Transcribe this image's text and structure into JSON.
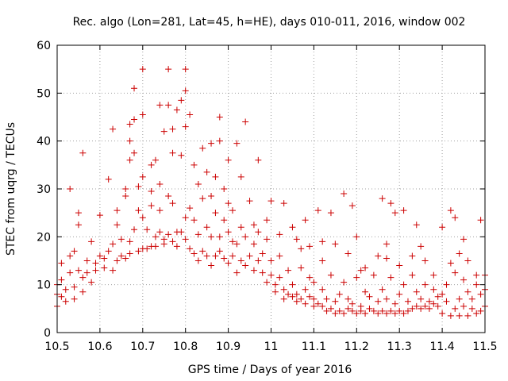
{
  "chart_data": {
    "type": "scatter",
    "title": "Rec. algo (Lon=281, Lat=45, h=HE), days 010-011, 2016, window 002",
    "xlabel": "GPS time / Days of year 2016",
    "ylabel": "STEC from uqrg / TECUs",
    "xlim": [
      10.5,
      11.5
    ],
    "ylim": [
      0,
      60
    ],
    "x_ticks": [
      10.5,
      10.6,
      10.7,
      10.8,
      10.9,
      11.0,
      11.1,
      11.2,
      11.3,
      11.4,
      11.5
    ],
    "x_tick_labels": [
      "10.5",
      "10.6",
      "10.7",
      "10.8",
      "10.9",
      "11",
      "11.1",
      "11.2",
      "11.3",
      "11.4",
      "11.5"
    ],
    "y_ticks": [
      0,
      10,
      20,
      30,
      40,
      50,
      60
    ],
    "y_tick_labels": [
      "0",
      "10",
      "20",
      "30",
      "40",
      "50",
      "60"
    ],
    "grid": true,
    "marker": "plus",
    "color": "#cc0000",
    "series": [
      {
        "points": [
          [
            10.5,
            5.5
          ],
          [
            10.5,
            8.0
          ],
          [
            10.5,
            10.0
          ],
          [
            10.51,
            7.5
          ],
          [
            10.51,
            11.0
          ],
          [
            10.51,
            14.5
          ],
          [
            10.52,
            9.0
          ],
          [
            10.52,
            6.5
          ],
          [
            10.53,
            12.5
          ],
          [
            10.53,
            16.0
          ],
          [
            10.53,
            30.0
          ],
          [
            10.54,
            7.0
          ],
          [
            10.54,
            17.0
          ],
          [
            10.54,
            9.5
          ],
          [
            10.55,
            13.0
          ],
          [
            10.55,
            25.0
          ],
          [
            10.55,
            22.5
          ],
          [
            10.56,
            11.5
          ],
          [
            10.56,
            8.5
          ],
          [
            10.56,
            37.5
          ],
          [
            10.57,
            12.5
          ],
          [
            10.57,
            15.0
          ],
          [
            10.58,
            19.0
          ],
          [
            10.58,
            10.5
          ],
          [
            10.59,
            13.0
          ],
          [
            10.59,
            14.5
          ],
          [
            10.6,
            16.0
          ],
          [
            10.6,
            24.5
          ],
          [
            10.61,
            13.5
          ],
          [
            10.61,
            15.5
          ],
          [
            10.62,
            32.0
          ],
          [
            10.62,
            17.0
          ],
          [
            10.63,
            13.0
          ],
          [
            10.63,
            18.5
          ],
          [
            10.63,
            42.5
          ],
          [
            10.64,
            15.0
          ],
          [
            10.64,
            22.5
          ],
          [
            10.64,
            25.5
          ],
          [
            10.65,
            16.0
          ],
          [
            10.65,
            19.5
          ],
          [
            10.66,
            28.5
          ],
          [
            10.66,
            30.0
          ],
          [
            10.66,
            15.5
          ],
          [
            10.67,
            36.0
          ],
          [
            10.67,
            40.0
          ],
          [
            10.67,
            43.5
          ],
          [
            10.67,
            19.0
          ],
          [
            10.67,
            16.5
          ],
          [
            10.68,
            21.5
          ],
          [
            10.68,
            37.5
          ],
          [
            10.68,
            44.5
          ],
          [
            10.68,
            51.0
          ],
          [
            10.69,
            17.0
          ],
          [
            10.69,
            25.5
          ],
          [
            10.69,
            30.5
          ],
          [
            10.7,
            17.5
          ],
          [
            10.7,
            24.0
          ],
          [
            10.7,
            32.5
          ],
          [
            10.7,
            55.0
          ],
          [
            10.7,
            45.5
          ],
          [
            10.71,
            17.5
          ],
          [
            10.71,
            21.5
          ],
          [
            10.72,
            18.0
          ],
          [
            10.72,
            26.5
          ],
          [
            10.72,
            29.5
          ],
          [
            10.72,
            35.0
          ],
          [
            10.73,
            20.0
          ],
          [
            10.73,
            18.0
          ],
          [
            10.73,
            36.0
          ],
          [
            10.74,
            21.0
          ],
          [
            10.74,
            25.5
          ],
          [
            10.74,
            31.0
          ],
          [
            10.74,
            47.5
          ],
          [
            10.75,
            18.5
          ],
          [
            10.75,
            19.5
          ],
          [
            10.75,
            42.0
          ],
          [
            10.76,
            55.0
          ],
          [
            10.76,
            28.5
          ],
          [
            10.76,
            20.5
          ],
          [
            10.76,
            47.5
          ],
          [
            10.77,
            19.0
          ],
          [
            10.77,
            27.0
          ],
          [
            10.77,
            37.5
          ],
          [
            10.77,
            42.5
          ],
          [
            10.78,
            18.0
          ],
          [
            10.78,
            21.0
          ],
          [
            10.78,
            46.5
          ],
          [
            10.79,
            21.0
          ],
          [
            10.79,
            48.5
          ],
          [
            10.79,
            37.0
          ],
          [
            10.8,
            19.5
          ],
          [
            10.8,
            24.0
          ],
          [
            10.8,
            43.0
          ],
          [
            10.8,
            55.0
          ],
          [
            10.8,
            50.5
          ],
          [
            10.81,
            17.5
          ],
          [
            10.81,
            26.0
          ],
          [
            10.81,
            45.5
          ],
          [
            10.82,
            16.5
          ],
          [
            10.82,
            23.5
          ],
          [
            10.82,
            35.0
          ],
          [
            10.83,
            15.0
          ],
          [
            10.83,
            20.5
          ],
          [
            10.83,
            31.0
          ],
          [
            10.84,
            17.0
          ],
          [
            10.84,
            28.0
          ],
          [
            10.84,
            38.5
          ],
          [
            10.85,
            16.0
          ],
          [
            10.85,
            22.0
          ],
          [
            10.85,
            33.5
          ],
          [
            10.86,
            14.0
          ],
          [
            10.86,
            20.0
          ],
          [
            10.86,
            28.5
          ],
          [
            10.86,
            39.5
          ],
          [
            10.87,
            16.0
          ],
          [
            10.87,
            25.0
          ],
          [
            10.87,
            32.5
          ],
          [
            10.88,
            17.0
          ],
          [
            10.88,
            20.0
          ],
          [
            10.88,
            45.0
          ],
          [
            10.88,
            40.0
          ],
          [
            10.89,
            15.5
          ],
          [
            10.89,
            23.5
          ],
          [
            10.89,
            30.0
          ],
          [
            10.9,
            14.5
          ],
          [
            10.9,
            21.0
          ],
          [
            10.9,
            27.0
          ],
          [
            10.9,
            36.0
          ],
          [
            10.91,
            16.0
          ],
          [
            10.91,
            19.0
          ],
          [
            10.91,
            25.5
          ],
          [
            10.92,
            12.5
          ],
          [
            10.92,
            18.5
          ],
          [
            10.92,
            39.5
          ],
          [
            10.93,
            15.0
          ],
          [
            10.93,
            22.0
          ],
          [
            10.93,
            32.5
          ],
          [
            10.94,
            44.0
          ],
          [
            10.94,
            14.0
          ],
          [
            10.94,
            20.0
          ],
          [
            10.95,
            16.0
          ],
          [
            10.95,
            27.5
          ],
          [
            10.96,
            13.0
          ],
          [
            10.96,
            18.5
          ],
          [
            10.96,
            22.5
          ],
          [
            10.97,
            15.0
          ],
          [
            10.97,
            21.0
          ],
          [
            10.97,
            36.0
          ],
          [
            10.98,
            12.5
          ],
          [
            10.98,
            16.5
          ],
          [
            10.99,
            10.5
          ],
          [
            10.99,
            19.5
          ],
          [
            10.99,
            23.5
          ],
          [
            11.0,
            12.0
          ],
          [
            11.0,
            15.0
          ],
          [
            11.0,
            27.5
          ],
          [
            11.01,
            8.5
          ],
          [
            11.01,
            10.0
          ],
          [
            11.02,
            11.5
          ],
          [
            11.02,
            16.0
          ],
          [
            11.02,
            20.5
          ],
          [
            11.03,
            7.0
          ],
          [
            11.03,
            9.0
          ],
          [
            11.03,
            27.0
          ],
          [
            11.04,
            8.0
          ],
          [
            11.04,
            13.0
          ],
          [
            11.05,
            7.5
          ],
          [
            11.05,
            10.0
          ],
          [
            11.05,
            22.0
          ],
          [
            11.06,
            6.5
          ],
          [
            11.06,
            8.0
          ],
          [
            11.06,
            19.5
          ],
          [
            11.07,
            7.0
          ],
          [
            11.07,
            13.5
          ],
          [
            11.08,
            6.0
          ],
          [
            11.08,
            9.0
          ],
          [
            11.08,
            23.5
          ],
          [
            11.09,
            7.5
          ],
          [
            11.09,
            11.5
          ],
          [
            11.09,
            18.0
          ],
          [
            11.1,
            5.5
          ],
          [
            11.1,
            7.0
          ],
          [
            11.1,
            10.5
          ],
          [
            11.11,
            6.0
          ],
          [
            11.11,
            25.5
          ],
          [
            11.12,
            5.5
          ],
          [
            11.12,
            9.0
          ],
          [
            11.12,
            15.0
          ],
          [
            11.13,
            4.5
          ],
          [
            11.13,
            7.0
          ],
          [
            11.14,
            5.0
          ],
          [
            11.14,
            12.0
          ],
          [
            11.14,
            25.0
          ],
          [
            11.15,
            4.0
          ],
          [
            11.15,
            6.5
          ],
          [
            11.15,
            18.5
          ],
          [
            11.16,
            4.5
          ],
          [
            11.16,
            8.0
          ],
          [
            11.17,
            4.0
          ],
          [
            11.17,
            10.5
          ],
          [
            11.17,
            29.0
          ],
          [
            11.18,
            5.0
          ],
          [
            11.18,
            7.0
          ],
          [
            11.18,
            16.5
          ],
          [
            11.19,
            4.5
          ],
          [
            11.19,
            6.0
          ],
          [
            11.19,
            26.5
          ],
          [
            11.2,
            4.0
          ],
          [
            11.2,
            11.5
          ],
          [
            11.2,
            20.0
          ],
          [
            11.21,
            4.5
          ],
          [
            11.21,
            5.5
          ],
          [
            11.22,
            4.0
          ],
          [
            11.22,
            8.5
          ],
          [
            11.22,
            13.5
          ],
          [
            11.23,
            5.0
          ],
          [
            11.23,
            7.5
          ],
          [
            11.24,
            4.5
          ],
          [
            11.24,
            12.0
          ],
          [
            11.25,
            4.0
          ],
          [
            11.25,
            6.5
          ],
          [
            11.25,
            16.0
          ],
          [
            11.26,
            4.5
          ],
          [
            11.26,
            9.0
          ],
          [
            11.26,
            28.0
          ],
          [
            11.27,
            4.0
          ],
          [
            11.27,
            7.0
          ],
          [
            11.27,
            18.5
          ],
          [
            11.28,
            4.5
          ],
          [
            11.28,
            11.5
          ],
          [
            11.28,
            27.0
          ],
          [
            11.29,
            4.0
          ],
          [
            11.29,
            6.0
          ],
          [
            11.29,
            25.0
          ],
          [
            11.3,
            4.5
          ],
          [
            11.3,
            8.0
          ],
          [
            11.3,
            14.0
          ],
          [
            11.31,
            4.0
          ],
          [
            11.31,
            10.0
          ],
          [
            11.31,
            25.5
          ],
          [
            11.32,
            4.5
          ],
          [
            11.32,
            6.5
          ],
          [
            11.33,
            5.0
          ],
          [
            11.33,
            12.0
          ],
          [
            11.33,
            16.0
          ],
          [
            11.34,
            5.5
          ],
          [
            11.34,
            8.5
          ],
          [
            11.34,
            22.5
          ],
          [
            11.35,
            5.0
          ],
          [
            11.35,
            7.0
          ],
          [
            11.36,
            5.5
          ],
          [
            11.36,
            10.0
          ],
          [
            11.36,
            15.0
          ],
          [
            11.37,
            5.0
          ],
          [
            11.37,
            6.5
          ],
          [
            11.38,
            6.0
          ],
          [
            11.38,
            9.0
          ],
          [
            11.38,
            12.0
          ],
          [
            11.39,
            5.5
          ],
          [
            11.39,
            7.5
          ],
          [
            11.4,
            4.0
          ],
          [
            11.4,
            8.0
          ],
          [
            11.4,
            22.0
          ],
          [
            11.41,
            6.5
          ],
          [
            11.41,
            10.0
          ],
          [
            11.42,
            3.5
          ],
          [
            11.42,
            14.5
          ],
          [
            11.42,
            25.5
          ],
          [
            11.43,
            5.0
          ],
          [
            11.43,
            12.5
          ],
          [
            11.43,
            24.0
          ],
          [
            11.44,
            3.5
          ],
          [
            11.44,
            7.0
          ],
          [
            11.45,
            5.5
          ],
          [
            11.45,
            11.0
          ],
          [
            11.45,
            19.5
          ],
          [
            11.46,
            3.5
          ],
          [
            11.46,
            8.5
          ],
          [
            11.46,
            15.0
          ],
          [
            11.47,
            5.0
          ],
          [
            11.47,
            7.0
          ],
          [
            11.48,
            4.0
          ],
          [
            11.48,
            10.0
          ],
          [
            11.48,
            12.0
          ],
          [
            11.49,
            4.5
          ],
          [
            11.49,
            8.0
          ],
          [
            11.49,
            23.5
          ],
          [
            11.5,
            5.5
          ],
          [
            11.5,
            9.0
          ],
          [
            11.5,
            12.0
          ],
          [
            11.35,
            18.0
          ],
          [
            11.21,
            13.0
          ],
          [
            11.12,
            19.0
          ],
          [
            11.07,
            17.5
          ],
          [
            11.44,
            16.5
          ],
          [
            11.27,
            15.5
          ]
        ]
      }
    ]
  }
}
